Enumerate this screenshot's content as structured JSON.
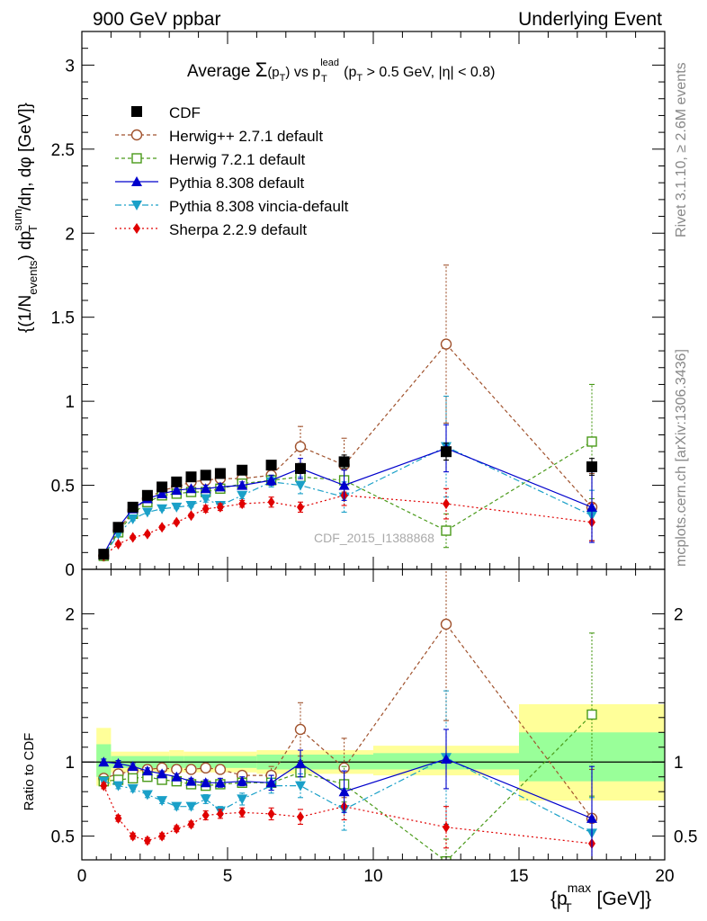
{
  "header": {
    "left": "900 GeV ppbar",
    "right": "Underlying Event",
    "title_prefix": "Average ",
    "title_sigma": "Σ",
    "title_sigma_arg": "(p",
    "title_sigma_arg_sub": "T",
    "title_sigma_arg_close": ")",
    "title_vs": " vs p",
    "title_vs_sup": "lead",
    "title_vs_sub": "T",
    "title_cut": " (p",
    "title_cut_sub": "T",
    "title_cut_rest": " > 0.5 GeV, |η| < 0.8)"
  },
  "side_labels": {
    "rivet": "Rivet 3.1.10, ≥ 2.6M events",
    "mcplots": "mcplots.cern.ch [arXiv:1306.3436]"
  },
  "watermark": "CDF_2015_I1388868",
  "colors": {
    "cdf": "#000000",
    "herwigpp": "#a0522d",
    "herwig7": "#4a9a1a",
    "pythia": "#0000cc",
    "vincia": "#1aa0c8",
    "sherpa": "#e00000",
    "band_outer": "#ffff99",
    "band_inner": "#99ff99"
  },
  "chart_data": [
    {
      "type": "scatter",
      "panel": "main",
      "ylabel_parts": {
        "a": "{(1/N",
        "a_sub": "events",
        "b": ") dp",
        "b_sub": "T",
        "b_sup": "sum",
        "c": "/dη, dφ [GeV]}"
      },
      "xlim": [
        0,
        20
      ],
      "ylim": [
        0,
        3.2
      ],
      "yticks": [
        0,
        0.5,
        1,
        1.5,
        2,
        2.5,
        3
      ],
      "ytick_labels": [
        "0",
        "0.5",
        "1",
        "1.5",
        "2",
        "2.5",
        "3"
      ],
      "legend_placement": "top-left",
      "series": [
        {
          "key": "cdf",
          "name": "CDF",
          "marker": "square-filled",
          "x": [
            0.75,
            1.25,
            1.75,
            2.25,
            2.75,
            3.25,
            3.75,
            4.25,
            4.75,
            5.5,
            6.5,
            7.5,
            9.0,
            12.5,
            17.5
          ],
          "y": [
            0.09,
            0.25,
            0.37,
            0.44,
            0.49,
            0.52,
            0.55,
            0.56,
            0.57,
            0.59,
            0.62,
            0.6,
            0.64,
            0.7,
            0.61
          ],
          "err": [
            0.01,
            0.01,
            0.01,
            0.01,
            0.01,
            0.01,
            0.01,
            0.01,
            0.01,
            0.01,
            0.02,
            0.03,
            0.04,
            0.05,
            0.05
          ]
        },
        {
          "key": "herwigpp",
          "name": "Herwig++ 2.7.1 default",
          "marker": "circle-open",
          "dash": "4,3",
          "x": [
            0.75,
            1.25,
            1.75,
            2.25,
            2.75,
            3.25,
            3.75,
            4.25,
            4.75,
            5.5,
            6.5,
            7.5,
            9.0,
            12.5,
            17.5
          ],
          "y": [
            0.08,
            0.23,
            0.35,
            0.42,
            0.47,
            0.49,
            0.52,
            0.53,
            0.54,
            0.54,
            0.56,
            0.73,
            0.62,
            1.34,
            0.37
          ],
          "err": [
            0.01,
            0.01,
            0.01,
            0.01,
            0.01,
            0.01,
            0.02,
            0.02,
            0.02,
            0.03,
            0.05,
            0.12,
            0.16,
            0.47,
            0.2
          ]
        },
        {
          "key": "herwig7",
          "name": "Herwig 7.2.1 default",
          "marker": "square-open",
          "dash": "4,3",
          "x": [
            0.75,
            1.25,
            1.75,
            2.25,
            2.75,
            3.25,
            3.75,
            4.25,
            4.75,
            5.5,
            6.5,
            7.5,
            9.0,
            12.5,
            17.5
          ],
          "y": [
            0.08,
            0.22,
            0.33,
            0.4,
            0.44,
            0.45,
            0.46,
            0.46,
            0.48,
            0.51,
            0.53,
            0.55,
            0.53,
            0.23,
            0.76
          ],
          "err": [
            0.01,
            0.01,
            0.01,
            0.01,
            0.01,
            0.01,
            0.01,
            0.02,
            0.02,
            0.02,
            0.03,
            0.05,
            0.08,
            0.1,
            0.34
          ]
        },
        {
          "key": "pythia",
          "name": "Pythia 8.308 default",
          "marker": "triangle-up-filled",
          "dash": "",
          "x": [
            0.75,
            1.25,
            1.75,
            2.25,
            2.75,
            3.25,
            3.75,
            4.25,
            4.75,
            5.5,
            6.5,
            7.5,
            9.0,
            12.5,
            17.5
          ],
          "y": [
            0.09,
            0.25,
            0.36,
            0.42,
            0.45,
            0.47,
            0.48,
            0.48,
            0.49,
            0.5,
            0.53,
            0.6,
            0.5,
            0.72,
            0.37
          ],
          "err": [
            0.01,
            0.01,
            0.01,
            0.01,
            0.01,
            0.01,
            0.01,
            0.02,
            0.02,
            0.02,
            0.03,
            0.06,
            0.09,
            0.14,
            0.21
          ]
        },
        {
          "key": "vincia",
          "name": "Pythia 8.308 vincia-default",
          "marker": "triangle-down-filled",
          "dash": "7,3,2,3",
          "x": [
            0.75,
            1.25,
            1.75,
            2.25,
            2.75,
            3.25,
            3.75,
            4.25,
            4.75,
            5.5,
            6.5,
            7.5,
            9.0,
            12.5,
            17.5
          ],
          "y": [
            0.08,
            0.21,
            0.3,
            0.34,
            0.36,
            0.37,
            0.38,
            0.42,
            0.38,
            0.44,
            0.52,
            0.5,
            0.43,
            0.73,
            0.32
          ],
          "err": [
            0.01,
            0.01,
            0.01,
            0.01,
            0.01,
            0.01,
            0.01,
            0.02,
            0.02,
            0.02,
            0.03,
            0.05,
            0.09,
            0.3,
            0.15
          ]
        },
        {
          "key": "sherpa",
          "name": "Sherpa 2.2.9 default",
          "marker": "diamond-filled",
          "dash": "2,3",
          "x": [
            0.75,
            1.25,
            1.75,
            2.25,
            2.75,
            3.25,
            3.75,
            4.25,
            4.75,
            5.5,
            6.5,
            7.5,
            9.0,
            12.5,
            17.5
          ],
          "y": [
            0.08,
            0.15,
            0.19,
            0.21,
            0.25,
            0.28,
            0.32,
            0.36,
            0.37,
            0.39,
            0.4,
            0.37,
            0.44,
            0.39,
            0.28
          ],
          "err": [
            0.01,
            0.01,
            0.01,
            0.01,
            0.01,
            0.01,
            0.01,
            0.02,
            0.02,
            0.02,
            0.03,
            0.03,
            0.06,
            0.09,
            0.11
          ]
        }
      ]
    },
    {
      "type": "scatter",
      "panel": "ratio",
      "ylabel": "Ratio to CDF",
      "xlabel_parts": {
        "a": "{p",
        "a_sub": "T",
        "a_sup": "max",
        "b": " [GeV]}"
      },
      "xlim": [
        0,
        20
      ],
      "ylim": [
        0.34,
        2.3
      ],
      "xticks": [
        0,
        5,
        10,
        15,
        20
      ],
      "xtick_labels": [
        "0",
        "5",
        "10",
        "15",
        "20"
      ],
      "yticks": [
        0.5,
        1,
        2
      ],
      "ytick_labels": [
        "0.5",
        "1",
        "2"
      ],
      "reference_line": 1,
      "band": [
        {
          "xlo": 0.5,
          "xhi": 1.0,
          "outer": [
            0.84,
            1.23
          ],
          "inner": [
            0.9,
            1.12
          ]
        },
        {
          "xlo": 1.0,
          "xhi": 3.0,
          "outer": [
            0.93,
            1.07
          ],
          "inner": [
            0.96,
            1.04
          ]
        },
        {
          "xlo": 3.0,
          "xhi": 3.5,
          "outer": [
            0.93,
            1.08
          ],
          "inner": [
            0.96,
            1.04
          ]
        },
        {
          "xlo": 3.5,
          "xhi": 6.0,
          "outer": [
            0.93,
            1.07
          ],
          "inner": [
            0.96,
            1.04
          ]
        },
        {
          "xlo": 6.0,
          "xhi": 10.0,
          "outer": [
            0.92,
            1.08
          ],
          "inner": [
            0.95,
            1.05
          ]
        },
        {
          "xlo": 10.0,
          "xhi": 15.0,
          "outer": [
            0.91,
            1.11
          ],
          "inner": [
            0.95,
            1.06
          ]
        },
        {
          "xlo": 15.0,
          "xhi": 20.0,
          "outer": [
            0.74,
            1.39
          ],
          "inner": [
            0.87,
            1.2
          ]
        }
      ],
      "series": [
        {
          "key": "herwigpp",
          "x": [
            0.75,
            1.25,
            1.75,
            2.25,
            2.75,
            3.25,
            3.75,
            4.25,
            4.75,
            5.5,
            6.5,
            7.5,
            9.0,
            12.5,
            17.5
          ],
          "y": [
            0.89,
            0.92,
            0.94,
            0.95,
            0.96,
            0.95,
            0.95,
            0.96,
            0.95,
            0.91,
            0.91,
            1.22,
            0.96,
            1.93,
            0.62
          ],
          "err": [
            0.02,
            0.02,
            0.02,
            0.02,
            0.02,
            0.02,
            0.02,
            0.02,
            0.02,
            0.03,
            0.06,
            0.18,
            0.2,
            0.65,
            0.33
          ]
        },
        {
          "key": "herwig7",
          "x": [
            0.75,
            1.25,
            1.75,
            2.25,
            2.75,
            3.25,
            3.75,
            4.25,
            4.75,
            5.5,
            6.5,
            7.5,
            9.0,
            12.5,
            17.5
          ],
          "y": [
            0.87,
            0.88,
            0.89,
            0.9,
            0.88,
            0.87,
            0.85,
            0.84,
            0.85,
            0.86,
            0.86,
            0.93,
            0.85,
            0.33,
            1.32
          ],
          "err": [
            0.02,
            0.02,
            0.02,
            0.02,
            0.02,
            0.02,
            0.02,
            0.02,
            0.03,
            0.03,
            0.05,
            0.08,
            0.12,
            0.15,
            0.55
          ]
        },
        {
          "key": "pythia",
          "x": [
            0.75,
            1.25,
            1.75,
            2.25,
            2.75,
            3.25,
            3.75,
            4.25,
            4.75,
            5.5,
            6.5,
            7.5,
            9.0,
            12.5,
            17.5
          ],
          "y": [
            1.0,
            0.99,
            0.97,
            0.94,
            0.92,
            0.9,
            0.87,
            0.86,
            0.86,
            0.87,
            0.86,
            0.99,
            0.8,
            1.02,
            0.62
          ],
          "err": [
            0.02,
            0.02,
            0.02,
            0.02,
            0.02,
            0.02,
            0.02,
            0.02,
            0.03,
            0.03,
            0.05,
            0.09,
            0.14,
            0.2,
            0.35
          ]
        },
        {
          "key": "vincia",
          "x": [
            0.75,
            1.25,
            1.75,
            2.25,
            2.75,
            3.25,
            3.75,
            4.25,
            4.75,
            5.5,
            6.5,
            7.5,
            9.0,
            12.5,
            17.5
          ],
          "y": [
            0.87,
            0.84,
            0.82,
            0.78,
            0.74,
            0.7,
            0.7,
            0.75,
            0.67,
            0.75,
            0.84,
            0.84,
            0.68,
            1.03,
            0.52
          ],
          "err": [
            0.02,
            0.02,
            0.02,
            0.02,
            0.02,
            0.02,
            0.02,
            0.03,
            0.03,
            0.04,
            0.05,
            0.08,
            0.14,
            0.45,
            0.24
          ]
        },
        {
          "key": "sherpa",
          "x": [
            0.75,
            1.25,
            1.75,
            2.25,
            2.75,
            3.25,
            3.75,
            4.25,
            4.75,
            5.5,
            6.5,
            7.5,
            9.0,
            12.5,
            17.5
          ],
          "y": [
            0.84,
            0.62,
            0.5,
            0.47,
            0.5,
            0.55,
            0.58,
            0.64,
            0.65,
            0.66,
            0.65,
            0.63,
            0.7,
            0.56,
            0.45
          ],
          "err": [
            0.02,
            0.02,
            0.02,
            0.02,
            0.02,
            0.02,
            0.02,
            0.03,
            0.03,
            0.03,
            0.04,
            0.05,
            0.09,
            0.14,
            0.18
          ]
        }
      ]
    }
  ]
}
